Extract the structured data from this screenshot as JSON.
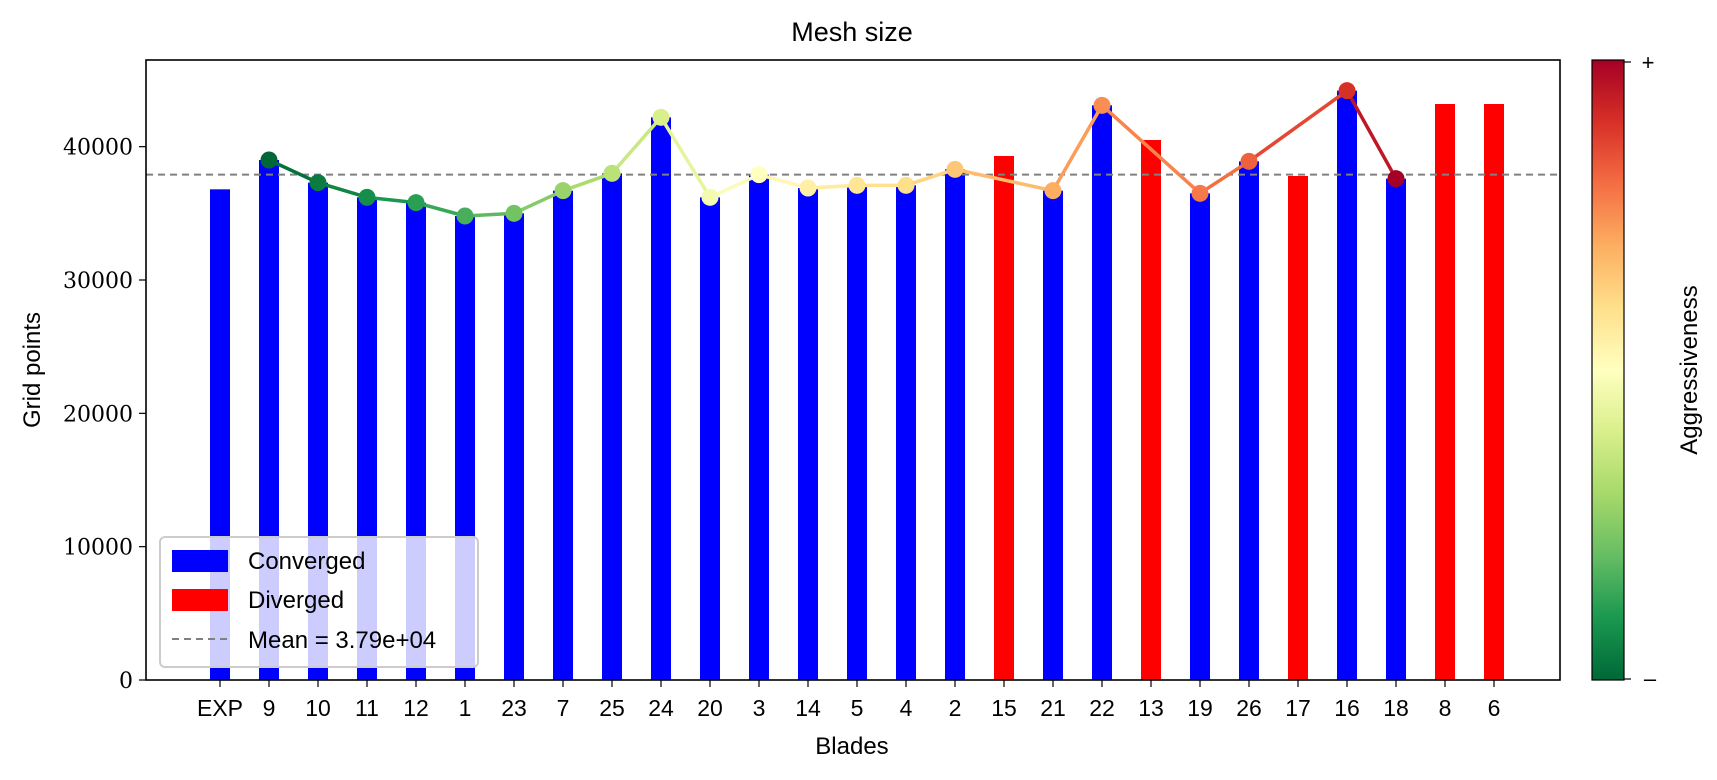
{
  "chart_data": {
    "type": "bar",
    "title": "Mesh size",
    "xlabel": "Blades",
    "ylabel": "Grid points",
    "ylim": [
      0,
      46500
    ],
    "yticks": [
      0,
      10000,
      20000,
      30000,
      40000
    ],
    "grid": false,
    "categories": [
      "EXP",
      "9",
      "10",
      "11",
      "12",
      "1",
      "23",
      "7",
      "25",
      "24",
      "20",
      "3",
      "14",
      "5",
      "4",
      "2",
      "15",
      "21",
      "22",
      "13",
      "19",
      "26",
      "17",
      "16",
      "18",
      "8",
      "6"
    ],
    "values": [
      36800,
      39000,
      37300,
      36200,
      35800,
      34800,
      35000,
      36700,
      38000,
      42200,
      36200,
      37900,
      36900,
      37100,
      37100,
      38300,
      39300,
      36700,
      43100,
      40500,
      36500,
      38900,
      37800,
      44200,
      37600,
      43200,
      43200
    ],
    "status": [
      "Converged",
      "Converged",
      "Converged",
      "Converged",
      "Converged",
      "Converged",
      "Converged",
      "Converged",
      "Converged",
      "Converged",
      "Converged",
      "Converged",
      "Converged",
      "Converged",
      "Converged",
      "Converged",
      "Diverged",
      "Converged",
      "Converged",
      "Diverged",
      "Converged",
      "Converged",
      "Diverged",
      "Converged",
      "Converged",
      "Diverged",
      "Diverged"
    ],
    "bar_colors": {
      "Converged": "#0000ff",
      "Diverged": "#ff0000"
    },
    "mean": 37900,
    "aggressiveness_line": {
      "categories": [
        "9",
        "10",
        "11",
        "12",
        "1",
        "23",
        "7",
        "25",
        "24",
        "20",
        "3",
        "14",
        "5",
        "4",
        "2",
        "21",
        "22",
        "19",
        "26",
        "16",
        "18"
      ],
      "values": [
        39000,
        37300,
        36200,
        35800,
        34800,
        35000,
        36700,
        38000,
        42200,
        36200,
        37900,
        36900,
        37100,
        37100,
        38300,
        36700,
        43100,
        36500,
        38900,
        44200,
        37600
      ],
      "aggressiveness": [
        0.0,
        0.04,
        0.08,
        0.12,
        0.16,
        0.22,
        0.28,
        0.34,
        0.4,
        0.47,
        0.5,
        0.55,
        0.58,
        0.6,
        0.65,
        0.7,
        0.75,
        0.78,
        0.82,
        0.9,
        1.0
      ]
    },
    "legend": {
      "placement": "lower-left",
      "entries": [
        "Converged",
        "Diverged",
        "Mean = 3.79e+04"
      ]
    },
    "colorbar": {
      "label": "Aggressiveness",
      "top_label": "+",
      "bottom_label": "–",
      "colormap": [
        "#006837",
        "#1a9850",
        "#66bd63",
        "#a6d96a",
        "#d9ef8b",
        "#ffffbf",
        "#fee08b",
        "#fdae61",
        "#f46d43",
        "#d73027",
        "#a50026"
      ]
    }
  }
}
